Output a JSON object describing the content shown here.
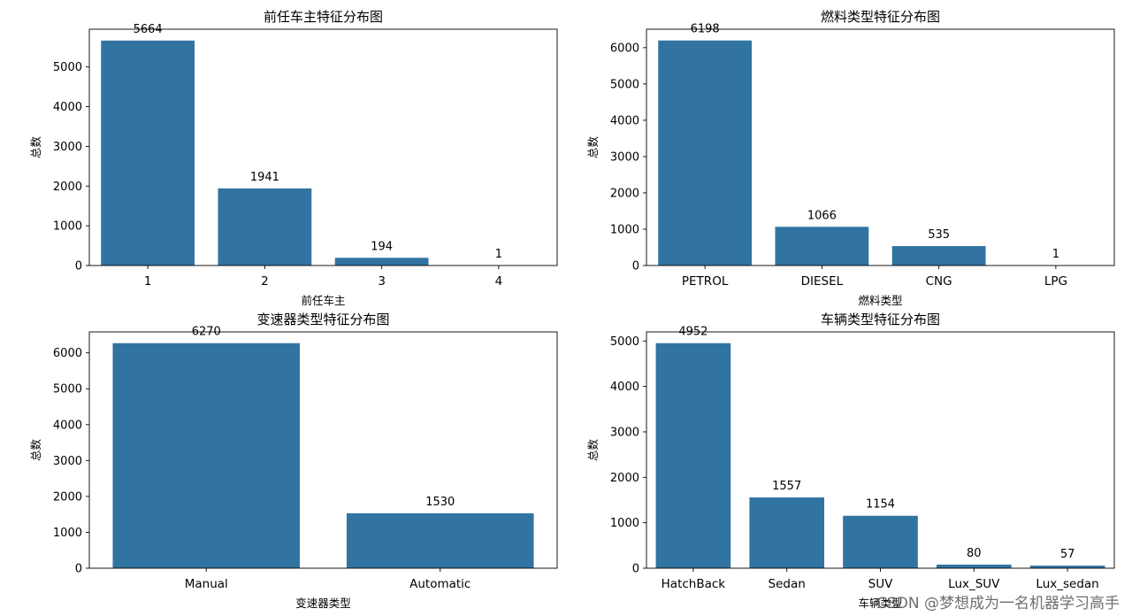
{
  "chart_data": [
    {
      "type": "bar",
      "title": "前任车主特征分布图",
      "xlabel": "前任车主",
      "ylabel": "总数",
      "categories": [
        "1",
        "2",
        "3",
        "4"
      ],
      "values": [
        5664,
        1941,
        194,
        1
      ],
      "data_labels": [
        "5664",
        "1941",
        "194",
        "1"
      ],
      "ylim": [
        0,
        5950
      ],
      "yticks": [
        0,
        1000,
        2000,
        3000,
        4000,
        5000
      ],
      "bar_color": "#3274a1",
      "grid": false
    },
    {
      "type": "bar",
      "title": "燃料类型特征分布图",
      "xlabel": "燃料类型",
      "ylabel": "总数",
      "categories": [
        "PETROL",
        "DIESEL",
        "CNG",
        "LPG"
      ],
      "values": [
        6198,
        1066,
        535,
        1
      ],
      "data_labels": [
        "6198",
        "1066",
        "535",
        "1"
      ],
      "ylim": [
        0,
        6508
      ],
      "yticks": [
        0,
        1000,
        2000,
        3000,
        4000,
        5000,
        6000
      ],
      "bar_color": "#3274a1",
      "grid": false
    },
    {
      "type": "bar",
      "title": "变速器类型特征分布图",
      "xlabel": "变速器类型",
      "ylabel": "总数",
      "categories": [
        "Manual",
        "Automatic"
      ],
      "values": [
        6270,
        1530
      ],
      "data_labels": [
        "6270",
        "1530"
      ],
      "ylim": [
        0,
        6584
      ],
      "yticks": [
        0,
        1000,
        2000,
        3000,
        4000,
        5000,
        6000
      ],
      "bar_color": "#3274a1",
      "grid": false
    },
    {
      "type": "bar",
      "title": "车辆类型特征分布图",
      "xlabel": "车辆类型",
      "ylabel": "总数",
      "categories": [
        "HatchBack",
        "Sedan",
        "SUV",
        "Lux_SUV",
        "Lux_sedan"
      ],
      "values": [
        4952,
        1557,
        1154,
        80,
        57
      ],
      "data_labels": [
        "4952",
        "1557",
        "1154",
        "80",
        "57"
      ],
      "ylim": [
        0,
        5200
      ],
      "yticks": [
        0,
        1000,
        2000,
        3000,
        4000,
        5000
      ],
      "bar_color": "#3274a1",
      "grid": false
    }
  ],
  "watermark": "CSDN @梦想成为一名机器学习高手"
}
